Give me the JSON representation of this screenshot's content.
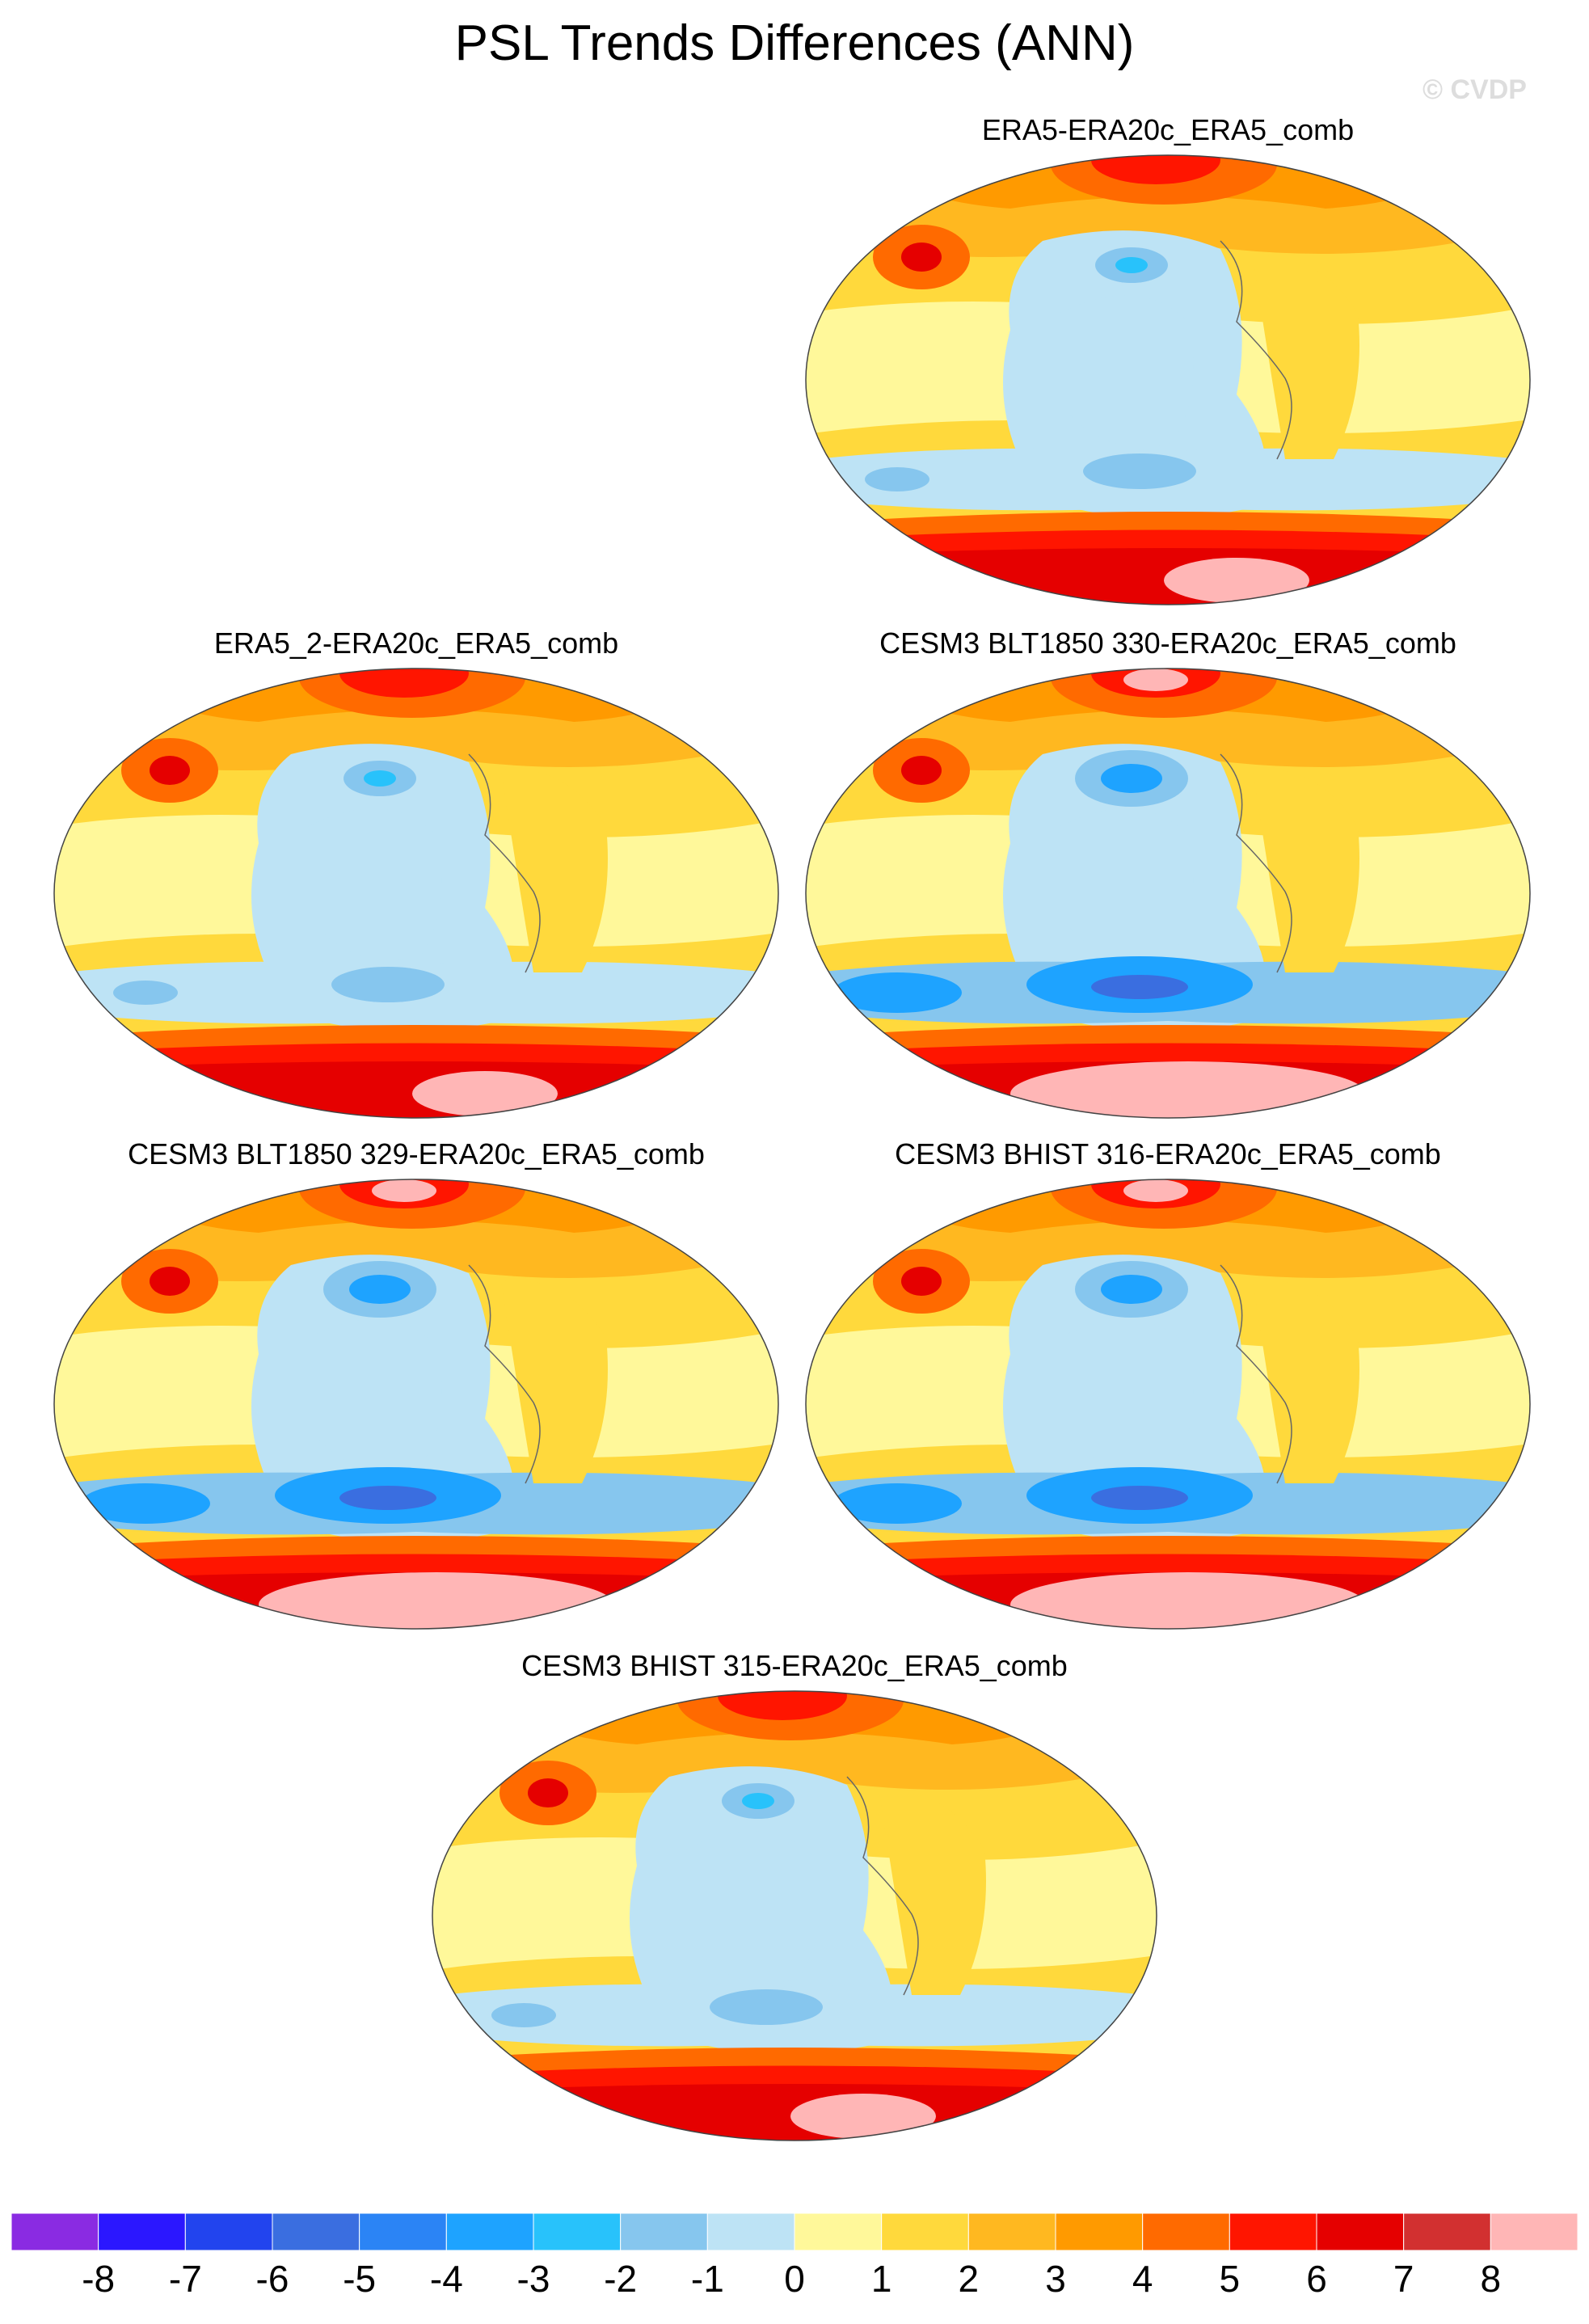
{
  "figure_title": "PSL Trends Differences (ANN)",
  "watermark": "© CVDP",
  "panels": [
    {
      "label": "ERA5-ERA20c_ERA5_comb",
      "variant": "moderate"
    },
    {
      "label": "ERA5_2-ERA20c_ERA5_comb",
      "variant": "moderate"
    },
    {
      "label": "CESM3 BLT1850 330-ERA20c_ERA5_comb",
      "variant": "strong"
    },
    {
      "label": "CESM3 BLT1850 329-ERA20c_ERA5_comb",
      "variant": "strong"
    },
    {
      "label": "CESM3 BHIST 316-ERA20c_ERA5_comb",
      "variant": "strong"
    },
    {
      "label": "CESM3 BHIST 315-ERA20c_ERA5_comb",
      "variant": "moderate"
    }
  ],
  "colorbar": {
    "labels": [
      "-8",
      "-7",
      "-6",
      "-5",
      "-4",
      "-3",
      "-2",
      "-1",
      "0",
      "1",
      "2",
      "3",
      "4",
      "5",
      "6",
      "7",
      "8"
    ],
    "colors": [
      "#8a2be2",
      "#2b17ff",
      "#2244ee",
      "#3a6ee0",
      "#2b84f5",
      "#1ea3ff",
      "#28c2fb",
      "#86c6ee",
      "#bde3f5",
      "#fff89a",
      "#ffd93c",
      "#ffb820",
      "#ff9a00",
      "#ff6a00",
      "#ff1500",
      "#e50000",
      "#d23030",
      "#ffb6b6"
    ]
  }
}
